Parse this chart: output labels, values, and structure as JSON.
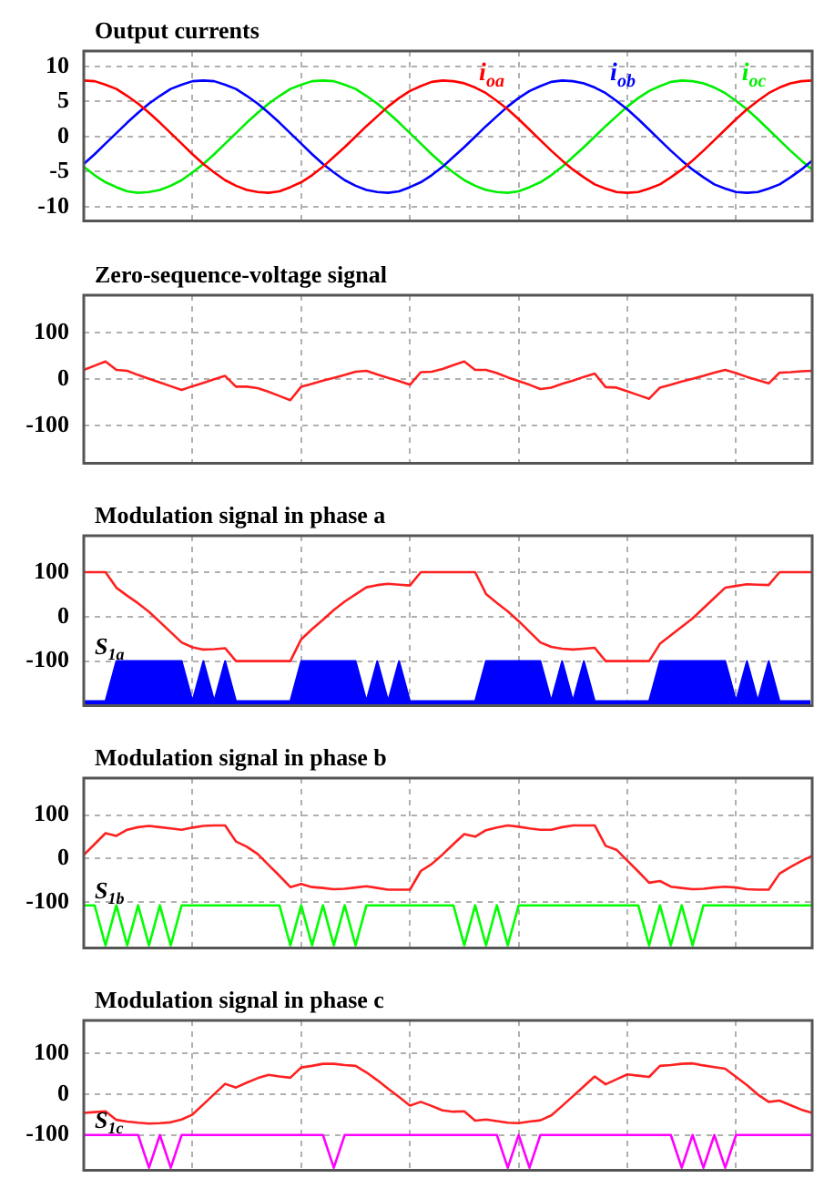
{
  "chart_data": [
    {
      "type": "line",
      "title": "Output currents",
      "ylim": [
        -12,
        12.2
      ],
      "yticks": [
        -10,
        -5,
        0,
        5,
        10
      ],
      "grid": true,
      "tick_labels": "y",
      "categories": [
        null,
        null,
        null,
        null,
        null,
        null,
        null,
        null,
        null,
        null,
        null,
        null,
        null,
        null,
        null,
        null,
        null,
        null,
        null,
        null,
        null,
        null,
        null,
        null,
        null,
        null,
        null,
        null,
        null,
        null,
        null,
        null,
        null,
        null,
        null,
        null,
        null,
        null,
        null,
        null,
        null,
        null,
        null,
        null,
        null,
        null,
        null,
        null,
        null,
        null,
        null,
        null,
        null,
        null,
        null,
        null,
        null,
        null,
        null,
        null,
        null,
        null,
        null,
        null,
        null,
        null,
        null,
        null
      ],
      "series": [
        {
          "name": "i$_{oa}$",
          "color": "#ff0000",
          "values": [
            8,
            7.9,
            7.4,
            6.8,
            5.8,
            4.7,
            3.4,
            2,
            0.5,
            -1,
            -2.5,
            -3.9,
            -5.1,
            -6.2,
            -7,
            -7.6,
            -7.9,
            -8,
            -7.8,
            -7.2,
            -6.5,
            -5.5,
            -4.3,
            -2.9,
            -1.5,
            0,
            1.5,
            2.9,
            4.3,
            5.5,
            6.5,
            7.2,
            7.8,
            8,
            7.9,
            7.6,
            7,
            6.2,
            5.1,
            3.9,
            2.5,
            1,
            -0.5,
            -2,
            -3.4,
            -4.7,
            -5.8,
            -6.8,
            -7.4,
            -7.9,
            -8,
            -7.9,
            -7.4,
            -6.8,
            -5.8,
            -4.7,
            -3.4,
            -2,
            -0.5,
            1,
            2.5,
            3.9,
            5.1,
            6.2,
            7,
            7.6,
            7.9,
            8
          ]
        },
        {
          "name": "i$_{ob}$",
          "color": "#0000ff",
          "values": [
            -3.9,
            -2.5,
            -1,
            0.5,
            2,
            3.4,
            4.7,
            5.8,
            6.8,
            7.4,
            7.9,
            8,
            7.9,
            7.4,
            6.8,
            5.8,
            4.7,
            3.4,
            2,
            0.5,
            -1,
            -2.5,
            -3.9,
            -5.1,
            -6.2,
            -7,
            -7.6,
            -7.9,
            -8,
            -7.8,
            -7.2,
            -6.5,
            -5.5,
            -4.3,
            -2.9,
            -1.5,
            0,
            1.5,
            2.9,
            4.3,
            5.5,
            6.5,
            7.2,
            7.8,
            8,
            7.9,
            7.6,
            7,
            6.2,
            5.1,
            3.9,
            2.5,
            1,
            -0.5,
            -2,
            -3.4,
            -4.7,
            -5.8,
            -6.8,
            -7.4,
            -7.9,
            -8,
            -7.9,
            -7.4,
            -6.8,
            -5.8,
            -4.7,
            -3.4
          ]
        },
        {
          "name": "i$_{oc}$",
          "color": "#00ee00",
          "values": [
            -4.3,
            -5.5,
            -6.5,
            -7.2,
            -7.8,
            -8,
            -7.9,
            -7.6,
            -7,
            -6.2,
            -5.1,
            -3.9,
            -2.5,
            -1,
            0.5,
            2,
            3.4,
            4.7,
            5.8,
            6.8,
            7.4,
            7.9,
            8,
            7.9,
            7.4,
            6.8,
            5.8,
            4.7,
            3.4,
            2,
            0.5,
            -1,
            -2.5,
            -3.9,
            -5.1,
            -6.2,
            -7,
            -7.6,
            -7.9,
            -8,
            -7.8,
            -7.2,
            -6.5,
            -5.5,
            -4.3,
            -2.9,
            -1.5,
            0,
            1.5,
            2.9,
            4.3,
            5.5,
            6.5,
            7.2,
            7.8,
            8,
            7.9,
            7.6,
            7,
            6.2,
            5.1,
            3.9,
            2.5,
            1,
            -0.5,
            -2,
            -3.4,
            -4.7
          ]
        }
      ]
    },
    {
      "type": "line",
      "title": "Zero-sequence-voltage signal",
      "ylim": [
        -180,
        180
      ],
      "yticks": [
        -100,
        0,
        100
      ],
      "grid": true,
      "tick_labels": "y",
      "categories": [
        null,
        null,
        null,
        null,
        null,
        null,
        null,
        null,
        null,
        null,
        null,
        null,
        null,
        null,
        null,
        null,
        null,
        null,
        null,
        null,
        null,
        null,
        null,
        null,
        null,
        null,
        null,
        null,
        null,
        null,
        null,
        null,
        null,
        null,
        null,
        null,
        null,
        null,
        null,
        null,
        null,
        null,
        null,
        null,
        null,
        null,
        null,
        null,
        null,
        null,
        null,
        null,
        null,
        null,
        null,
        null,
        null,
        null,
        null,
        null,
        null,
        null,
        null,
        null,
        null,
        null,
        null,
        null
      ],
      "series": [
        {
          "color": "#ff2020",
          "values": [
            20,
            29,
            38,
            20,
            18,
            9,
            1,
            -7,
            -15,
            -23,
            -15,
            -8,
            0,
            7,
            -16,
            -16,
            -19,
            -27,
            -36,
            -45,
            -16,
            -10,
            -3,
            3,
            9,
            16,
            18,
            10,
            3,
            -4,
            -12,
            15,
            16,
            22,
            30,
            38,
            20,
            20,
            13,
            4,
            -4,
            -12,
            -21,
            -18,
            -10,
            -3,
            5,
            12,
            -17,
            -18,
            -26,
            -34,
            -42,
            -18,
            -12,
            -5,
            1,
            7,
            14,
            20,
            13,
            5,
            -2,
            -9,
            14,
            15,
            17,
            18
          ]
        }
      ]
    },
    {
      "type": "line",
      "title": "Modulation signal in phase a",
      "ylim": [
        -200,
        182
      ],
      "yticks": [
        -100,
        0,
        100
      ],
      "grid": true,
      "tick_labels": "y",
      "categories": [
        null,
        null,
        null,
        null,
        null,
        null,
        null,
        null,
        null,
        null,
        null,
        null,
        null,
        null,
        null,
        null,
        null,
        null,
        null,
        null,
        null,
        null,
        null,
        null,
        null,
        null,
        null,
        null,
        null,
        null,
        null,
        null,
        null,
        null,
        null,
        null,
        null,
        null,
        null,
        null,
        null,
        null,
        null,
        null,
        null,
        null,
        null,
        null,
        null,
        null,
        null,
        null,
        null,
        null,
        null,
        null,
        null,
        null,
        null,
        null,
        null,
        null,
        null,
        null,
        null,
        null,
        null,
        null
      ],
      "series": [
        {
          "color": "#ff2020",
          "values": [
            100,
            100,
            100,
            65,
            47,
            30,
            11,
            -12,
            -35,
            -58,
            -69,
            -74,
            -73,
            -71,
            -100,
            -100,
            -100,
            -100,
            -100,
            -100,
            -51,
            -28,
            -7,
            15,
            34,
            50,
            66,
            71,
            74,
            72,
            70,
            100,
            100,
            100,
            100,
            100,
            100,
            51,
            31,
            12,
            -10,
            -34,
            -58,
            -68,
            -72,
            -74,
            -72,
            -70,
            -100,
            -100,
            -100,
            -100,
            -100,
            -61,
            -42,
            -23,
            -4,
            19,
            42,
            65,
            69,
            73,
            72,
            71,
            100,
            100,
            100,
            100
          ]
        },
        {
          "name": "S$_{1a}$",
          "type": "area",
          "color": "#0000ff",
          "values": [
            -190,
            -190,
            -190,
            -100,
            -100,
            -100,
            -100,
            -100,
            -100,
            -100,
            -190,
            -100,
            -190,
            -100,
            -190,
            -190,
            -190,
            -190,
            -190,
            -190,
            -100,
            -100,
            -100,
            -100,
            -100,
            -100,
            -190,
            -100,
            -190,
            -100,
            -190,
            -190,
            -190,
            -190,
            -190,
            -190,
            -190,
            -100,
            -100,
            -100,
            -100,
            -100,
            -100,
            -190,
            -100,
            -190,
            -100,
            -190,
            -190,
            -190,
            -190,
            -190,
            -190,
            -100,
            -100,
            -100,
            -100,
            -100,
            -100,
            -100,
            -190,
            -100,
            -190,
            -100,
            -190,
            -190,
            -190,
            -190
          ]
        }
      ]
    },
    {
      "type": "line",
      "title": "Modulation signal in phase b",
      "ylim": [
        -206,
        185
      ],
      "yticks": [
        -100,
        0,
        100
      ],
      "grid": true,
      "tick_labels": "y",
      "categories": [
        null,
        null,
        null,
        null,
        null,
        null,
        null,
        null,
        null,
        null,
        null,
        null,
        null,
        null,
        null,
        null,
        null,
        null,
        null,
        null,
        null,
        null,
        null,
        null,
        null,
        null,
        null,
        null,
        null,
        null,
        null,
        null,
        null,
        null,
        null,
        null,
        null,
        null,
        null,
        null,
        null,
        null,
        null,
        null,
        null,
        null,
        null,
        null,
        null,
        null,
        null,
        null,
        null,
        null,
        null,
        null,
        null,
        null,
        null,
        null,
        null,
        null,
        null,
        null,
        null,
        null,
        null,
        null
      ],
      "series": [
        {
          "color": "#ff2020",
          "values": [
            8,
            33,
            58,
            52,
            66,
            72,
            75,
            72,
            69,
            66,
            71,
            75,
            76,
            76,
            39,
            27,
            10,
            -15,
            -40,
            -66,
            -59,
            -66,
            -68,
            -71,
            -70,
            -67,
            -64,
            -68,
            -72,
            -72,
            -72,
            -29,
            -13,
            9,
            33,
            56,
            50,
            65,
            71,
            76,
            73,
            69,
            66,
            66,
            72,
            76,
            76,
            76,
            29,
            20,
            -5,
            -30,
            -56,
            -52,
            -65,
            -68,
            -71,
            -70,
            -67,
            -65,
            -67,
            -71,
            -72,
            -72,
            -35,
            -20,
            -6,
            6
          ]
        },
        {
          "name": "S$_{1b}$",
          "type": "line",
          "color": "#00ff00",
          "values": [
            -108,
            -108,
            -200,
            -108,
            -200,
            -108,
            -200,
            -108,
            -200,
            -108,
            -108,
            -108,
            -108,
            -108,
            -108,
            -108,
            -108,
            -108,
            -108,
            -200,
            -108,
            -200,
            -108,
            -200,
            -108,
            -200,
            -108,
            -108,
            -108,
            -108,
            -108,
            -108,
            -108,
            -108,
            -108,
            -200,
            -108,
            -200,
            -108,
            -200,
            -108,
            -108,
            -108,
            -108,
            -108,
            -108,
            -108,
            -108,
            -108,
            -108,
            -108,
            -108,
            -200,
            -108,
            -200,
            -108,
            -200,
            -108,
            -108,
            -108,
            -108,
            -108,
            -108,
            -108,
            -108,
            -108,
            -108,
            -108
          ]
        }
      ]
    },
    {
      "type": "line",
      "title": "Modulation signal in phase c",
      "ylim": [
        -186,
        180
      ],
      "yticks": [
        -100,
        0,
        100
      ],
      "grid": true,
      "tick_labels": "y",
      "categories": [
        null,
        null,
        null,
        null,
        null,
        null,
        null,
        null,
        null,
        null,
        null,
        null,
        null,
        null,
        null,
        null,
        null,
        null,
        null,
        null,
        null,
        null,
        null,
        null,
        null,
        null,
        null,
        null,
        null,
        null,
        null,
        null,
        null,
        null,
        null,
        null,
        null,
        null,
        null,
        null,
        null,
        null,
        null,
        null,
        null,
        null,
        null,
        null,
        null,
        null,
        null,
        null,
        null,
        null,
        null,
        null,
        null,
        null,
        null,
        null,
        null,
        null,
        null,
        null,
        null,
        null,
        null,
        null
      ],
      "series": [
        {
          "color": "#ff2020",
          "values": [
            -46,
            -44,
            -42,
            -63,
            -67,
            -70,
            -72,
            -71,
            -69,
            -62,
            -50,
            -25,
            0,
            25,
            16,
            28,
            39,
            47,
            43,
            40,
            65,
            69,
            74,
            74,
            71,
            69,
            53,
            34,
            13,
            -7,
            -28,
            -19,
            -29,
            -40,
            -43,
            -42,
            -65,
            -62,
            -66,
            -70,
            -71,
            -67,
            -64,
            -52,
            -29,
            -5,
            19,
            43,
            24,
            36,
            48,
            45,
            42,
            69,
            71,
            74,
            75,
            70,
            66,
            62,
            42,
            22,
            -1,
            -19,
            -16,
            -27,
            -38,
            -46
          ]
        },
        {
          "name": "S$_{1c}$",
          "type": "line",
          "color": "#ff00ff",
          "values": [
            -100,
            -100,
            -100,
            -100,
            -100,
            -100,
            -180,
            -100,
            -180,
            -100,
            -100,
            -100,
            -100,
            -100,
            -100,
            -100,
            -100,
            -100,
            -100,
            -100,
            -100,
            -100,
            -100,
            -180,
            -100,
            -100,
            -100,
            -100,
            -100,
            -100,
            -100,
            -100,
            -100,
            -100,
            -100,
            -100,
            -100,
            -100,
            -100,
            -180,
            -100,
            -180,
            -100,
            -100,
            -100,
            -100,
            -100,
            -100,
            -100,
            -100,
            -100,
            -100,
            -100,
            -100,
            -100,
            -180,
            -100,
            -180,
            -100,
            -180,
            -100,
            -100,
            -100,
            -100,
            -100,
            -100,
            -100,
            -100
          ]
        }
      ]
    }
  ]
}
